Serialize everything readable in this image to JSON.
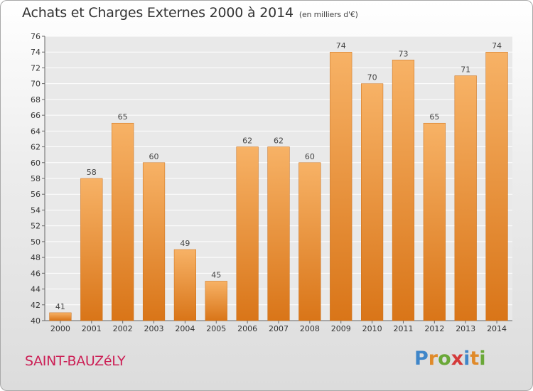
{
  "chart_data": {
    "type": "bar",
    "title": "Achats et Charges Externes 2000 à 2014",
    "subtitle": "(en milliers d'€)",
    "categories": [
      "2000",
      "2001",
      "2002",
      "2003",
      "2004",
      "2005",
      "2006",
      "2007",
      "2008",
      "2009",
      "2010",
      "2011",
      "2012",
      "2013",
      "2014"
    ],
    "values": [
      41,
      58,
      65,
      60,
      49,
      45,
      62,
      62,
      60,
      74,
      70,
      73,
      65,
      71,
      74
    ],
    "ylim": [
      40,
      76
    ],
    "yticks": [
      40,
      42,
      44,
      46,
      48,
      50,
      52,
      54,
      56,
      58,
      60,
      62,
      64,
      66,
      68,
      70,
      72,
      74,
      76
    ],
    "grid": true,
    "bar_color": "#f0922f",
    "bar_color_light": "#f7b266",
    "bar_color_dark": "#d97518"
  },
  "footer": {
    "commune": "SAINT-BAUZéLY",
    "brand": "Proxiti"
  }
}
